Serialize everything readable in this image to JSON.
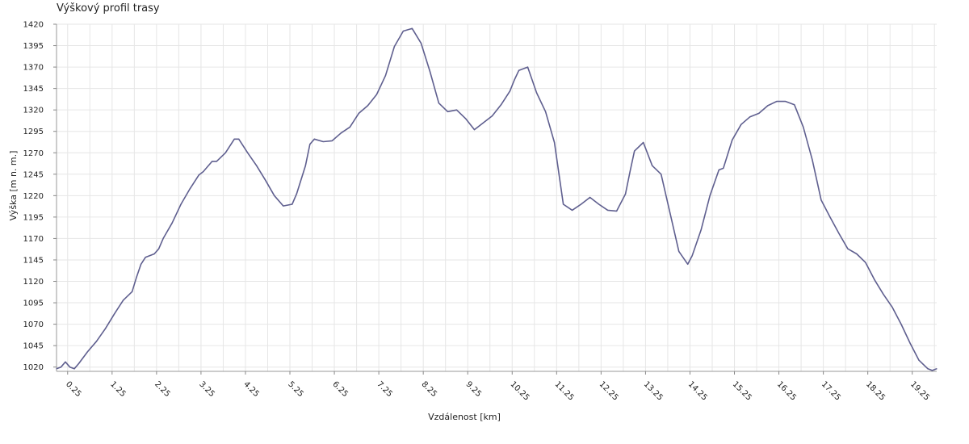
{
  "chart_data": {
    "type": "line",
    "title": "Výškový profil trasy",
    "xlabel": "Vzdálenost [km]",
    "ylabel": "Výška [m n. m.]",
    "xlim": [
      0,
      19.8
    ],
    "ylim": [
      1015,
      1420
    ],
    "y_ticks": [
      1020,
      1045,
      1070,
      1095,
      1120,
      1145,
      1170,
      1195,
      1220,
      1245,
      1270,
      1295,
      1320,
      1345,
      1370,
      1395,
      1420
    ],
    "x_ticks": [
      "0.25",
      "1.25",
      "2.25",
      "3.25",
      "4.25",
      "5.25",
      "6.25",
      "7.25",
      "8.25",
      "9.25",
      "10.25",
      "11.25",
      "12.25",
      "13.25",
      "14.25",
      "15.25",
      "16.25",
      "17.25",
      "18.25",
      "19.25"
    ],
    "x_tick_values": [
      0.25,
      1.25,
      2.25,
      3.25,
      4.25,
      5.25,
      6.25,
      7.25,
      8.25,
      9.25,
      10.25,
      11.25,
      12.25,
      13.25,
      14.25,
      15.25,
      16.25,
      17.25,
      18.25,
      19.25
    ],
    "grid": true,
    "line_color": "#5f5f8f",
    "series": [
      {
        "x": [
          0,
          0.1,
          0.2,
          0.3,
          0.4,
          0.5,
          0.7,
          0.9,
          1.1,
          1.3,
          1.5,
          1.7,
          1.8,
          1.9,
          2.0,
          2.2,
          2.3,
          2.4,
          2.6,
          2.8,
          3.0,
          3.2,
          3.3,
          3.5,
          3.6,
          3.8,
          4.0,
          4.1,
          4.3,
          4.5,
          4.7,
          4.9,
          5.1,
          5.3,
          5.4,
          5.6,
          5.7,
          5.8,
          6.0,
          6.2,
          6.4,
          6.6,
          6.8,
          7.0,
          7.2,
          7.4,
          7.6,
          7.8,
          8.0,
          8.2,
          8.4,
          8.6,
          8.8,
          9.0,
          9.2,
          9.4,
          9.6,
          9.8,
          10.0,
          10.2,
          10.3,
          10.4,
          10.6,
          10.8,
          11.0,
          11.2,
          11.4,
          11.6,
          11.8,
          12.0,
          12.2,
          12.4,
          12.6,
          12.8,
          12.9,
          13.0,
          13.2,
          13.4,
          13.6,
          13.8,
          14.0,
          14.2,
          14.3,
          14.5,
          14.7,
          14.9,
          15.0,
          15.2,
          15.4,
          15.6,
          15.8,
          16.0,
          16.2,
          16.4,
          16.6,
          16.8,
          17.0,
          17.2,
          17.4,
          17.6,
          17.8,
          18.0,
          18.2,
          18.4,
          18.6,
          18.8,
          19.0,
          19.2,
          19.4,
          19.6,
          19.7,
          19.8
        ],
        "y": [
          1018,
          1020,
          1026,
          1020,
          1018,
          1024,
          1038,
          1050,
          1065,
          1082,
          1098,
          1108,
          1125,
          1140,
          1148,
          1152,
          1158,
          1170,
          1188,
          1210,
          1228,
          1244,
          1248,
          1260,
          1260,
          1270,
          1286,
          1286,
          1270,
          1255,
          1238,
          1220,
          1208,
          1210,
          1222,
          1255,
          1280,
          1286,
          1283,
          1284,
          1293,
          1300,
          1316,
          1325,
          1338,
          1360,
          1394,
          1412,
          1415,
          1398,
          1365,
          1328,
          1318,
          1320,
          1310,
          1297,
          1305,
          1313,
          1326,
          1342,
          1355,
          1366,
          1370,
          1340,
          1318,
          1282,
          1210,
          1203,
          1210,
          1218,
          1210,
          1203,
          1202,
          1222,
          1248,
          1272,
          1282,
          1255,
          1245,
          1200,
          1155,
          1140,
          1150,
          1180,
          1220,
          1250,
          1252,
          1285,
          1303,
          1312,
          1316,
          1325,
          1330,
          1330,
          1326,
          1300,
          1262,
          1215,
          1195,
          1176,
          1158,
          1152,
          1142,
          1122,
          1105,
          1090,
          1070,
          1048,
          1028,
          1018,
          1016,
          1018
        ]
      }
    ]
  }
}
